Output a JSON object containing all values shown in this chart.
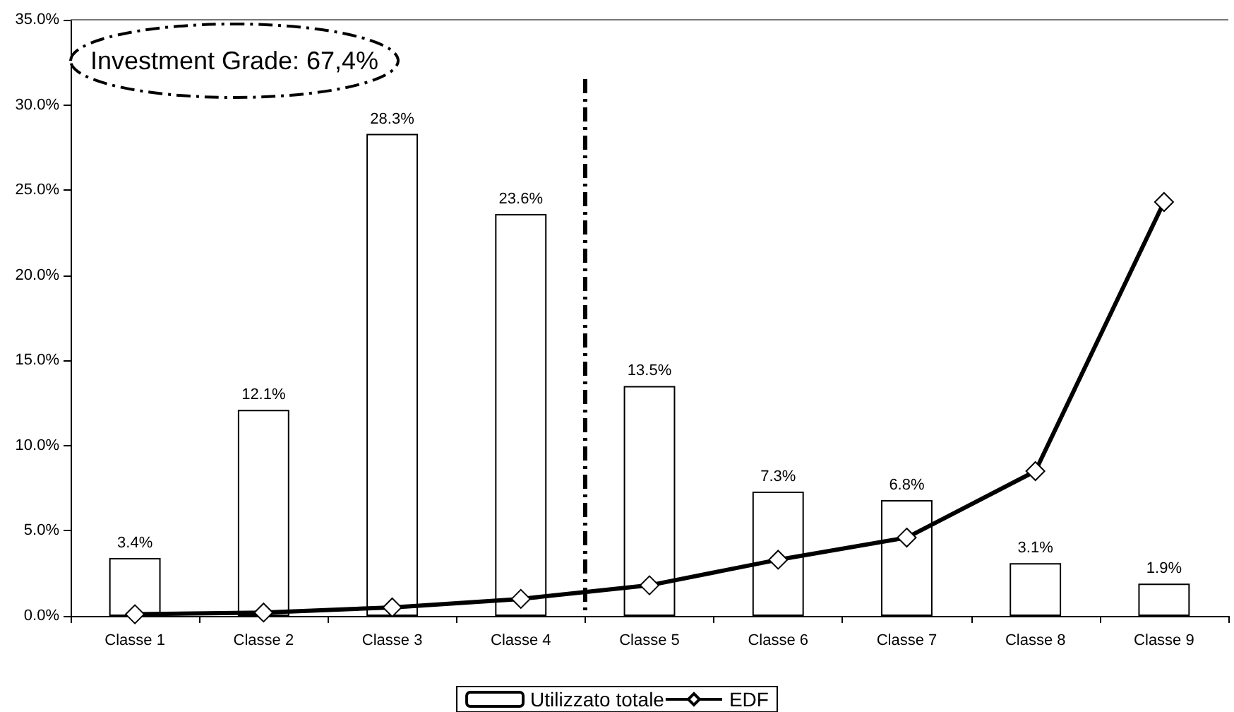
{
  "chart_data": {
    "type": "bar",
    "categories": [
      "Classe 1",
      "Classe 2",
      "Classe 3",
      "Classe 4",
      "Classe 5",
      "Classe 6",
      "Classe 7",
      "Classe 8",
      "Classe 9"
    ],
    "series": [
      {
        "name": "Utilizzato totale",
        "color": "#ffffff",
        "values": [
          3.4,
          12.1,
          28.3,
          23.6,
          13.5,
          7.3,
          6.8,
          3.1,
          1.9
        ],
        "value_labels": [
          "3.4%",
          "12.1%",
          "28.3%",
          "23.6%",
          "13.5%",
          "7.3%",
          "6.8%",
          "3.1%",
          "1.9%"
        ]
      },
      {
        "name": "EDF",
        "type": "line",
        "color": "#000000",
        "marker": "diamond",
        "values": [
          0.1,
          0.2,
          0.5,
          1.0,
          1.8,
          3.3,
          4.6,
          8.5,
          24.3
        ]
      }
    ],
    "ylim": [
      0,
      35
    ],
    "yticks": [
      {
        "value": 0,
        "label": "0.0%"
      },
      {
        "value": 5,
        "label": "5.0%"
      },
      {
        "value": 10,
        "label": "10.0%"
      },
      {
        "value": 15,
        "label": "15.0%"
      },
      {
        "value": 20,
        "label": "20.0%"
      },
      {
        "value": 25,
        "label": "25.0%"
      },
      {
        "value": 30,
        "label": "30.0%"
      },
      {
        "value": 35,
        "label": "35.0%"
      }
    ],
    "annotations": [
      "Investment Grade: 67,4%"
    ],
    "grid": false,
    "legend": "bottom"
  }
}
